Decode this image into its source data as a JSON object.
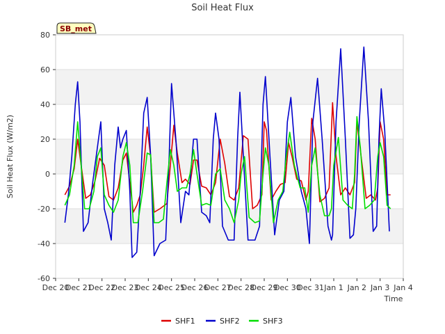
{
  "chart_data": {
    "type": "line",
    "title": "Soil Heat Flux",
    "xlabel": "Time",
    "ylabel": "Soil Heat Flux (W/m2)",
    "ylim": [
      -60,
      80
    ],
    "xlim": [
      0,
      15
    ],
    "yticks": [
      -60,
      -40,
      -20,
      0,
      20,
      40,
      60,
      80
    ],
    "ytick_labels": [
      "-60",
      "-40",
      "-20",
      "0",
      "20",
      "40",
      "60",
      "80"
    ],
    "xticks": [
      0,
      1,
      2,
      3,
      4,
      5,
      6,
      7,
      8,
      9,
      10,
      11,
      12,
      13,
      14,
      15
    ],
    "xtick_labels": [
      "Dec 20",
      "Dec 21",
      "Dec 22",
      "Dec 23",
      "Dec 24",
      "Dec 25",
      "Dec 26",
      "Dec 27",
      "Dec 28",
      "Dec 29",
      "Dec 30",
      "Dec 31",
      "Jan 1",
      "Jan 2",
      "Jan 3",
      "Jan 4"
    ],
    "station_label": "SB_met",
    "grid": true,
    "legend_position": "bottom-center",
    "x_unit": "days since Dec 20",
    "series": [
      {
        "name": "SHF1",
        "color": "#dd0000",
        "x": [
          0.4,
          0.6,
          0.8,
          0.95,
          1.1,
          1.3,
          1.5,
          1.7,
          1.9,
          2.1,
          2.3,
          2.5,
          2.7,
          2.9,
          3.05,
          3.2,
          3.35,
          3.5,
          3.65,
          3.8,
          3.95,
          4.1,
          4.25,
          4.5,
          4.8,
          4.95,
          5.1,
          5.25,
          5.45,
          5.6,
          5.8,
          5.95,
          6.1,
          6.3,
          6.5,
          6.7,
          6.9,
          7.1,
          7.3,
          7.5,
          7.7,
          7.9,
          8.1,
          8.3,
          8.5,
          8.7,
          8.9,
          9.0,
          9.1,
          9.3,
          9.5,
          9.7,
          9.9,
          10.05,
          10.2,
          10.4,
          10.6,
          10.8,
          10.9,
          11.05,
          11.2,
          11.4,
          11.6,
          11.8,
          11.95,
          12.1,
          12.3,
          12.5,
          12.7,
          12.9,
          13.0,
          13.2,
          13.4,
          13.6,
          13.8,
          13.9,
          14.0,
          14.15,
          14.3,
          14.45
        ],
        "values": [
          -12,
          -7,
          3,
          20,
          5,
          -14,
          -12,
          -4,
          9,
          5,
          -13,
          -15,
          -8,
          8,
          12,
          -5,
          -22,
          -18,
          -12,
          5,
          27,
          10,
          -22,
          -20,
          -17,
          5,
          28,
          12,
          -5,
          -3,
          -6,
          8,
          8,
          -7,
          -8,
          -12,
          -5,
          20,
          6,
          -13,
          -15,
          -8,
          22,
          20,
          -20,
          -18,
          -12,
          30,
          25,
          -15,
          -10,
          -6,
          -5,
          18,
          10,
          -3,
          -4,
          -15,
          -10,
          32,
          20,
          -16,
          -14,
          -8,
          41,
          10,
          -12,
          -8,
          -12,
          -5,
          30,
          8,
          -14,
          -12,
          -15,
          -8,
          30,
          20,
          -12,
          -12
        ]
      },
      {
        "name": "SHF2",
        "color": "#0000cc",
        "x": [
          0.4,
          0.55,
          0.7,
          0.85,
          0.95,
          1.05,
          1.2,
          1.4,
          1.6,
          1.8,
          1.95,
          2.1,
          2.25,
          2.4,
          2.55,
          2.7,
          2.8,
          2.9,
          3.05,
          3.2,
          3.3,
          3.5,
          3.65,
          3.8,
          3.95,
          4.1,
          4.25,
          4.5,
          4.75,
          4.9,
          5.0,
          5.2,
          5.4,
          5.6,
          5.75,
          5.95,
          6.1,
          6.3,
          6.5,
          6.65,
          6.8,
          6.9,
          7.05,
          7.2,
          7.45,
          7.7,
          7.85,
          7.95,
          8.1,
          8.3,
          8.6,
          8.8,
          8.95,
          9.05,
          9.25,
          9.45,
          9.65,
          9.85,
          10.0,
          10.15,
          10.35,
          10.6,
          10.8,
          10.95,
          11.1,
          11.3,
          11.5,
          11.75,
          11.9,
          11.95,
          12.1,
          12.3,
          12.5,
          12.7,
          12.85,
          12.95,
          13.1,
          13.3,
          13.5,
          13.7,
          13.85,
          13.95,
          14.05,
          14.2,
          14.4
        ],
        "values": [
          -28,
          -12,
          10,
          40,
          53,
          30,
          -33,
          -28,
          -5,
          15,
          30,
          -20,
          -28,
          -38,
          5,
          27,
          15,
          20,
          25,
          -10,
          -48,
          -45,
          -10,
          35,
          44,
          10,
          -47,
          -40,
          -38,
          10,
          52,
          18,
          -28,
          -10,
          -12,
          20,
          20,
          -22,
          -24,
          -28,
          20,
          35,
          20,
          -30,
          -38,
          -38,
          20,
          47,
          10,
          -38,
          -38,
          -30,
          40,
          56,
          10,
          -35,
          -15,
          -10,
          30,
          44,
          10,
          -10,
          -20,
          -40,
          30,
          55,
          20,
          -30,
          -38,
          -35,
          30,
          72,
          20,
          -37,
          -35,
          -20,
          30,
          73,
          30,
          -33,
          -30,
          20,
          49,
          25,
          -33
        ]
      },
      {
        "name": "SHF3",
        "color": "#00dd00",
        "x": [
          0.4,
          0.6,
          0.8,
          0.95,
          1.1,
          1.25,
          1.45,
          1.65,
          1.8,
          1.95,
          2.1,
          2.3,
          2.5,
          2.7,
          2.9,
          3.05,
          3.2,
          3.35,
          3.55,
          3.75,
          3.95,
          4.1,
          4.25,
          4.45,
          4.65,
          4.8,
          4.95,
          5.1,
          5.25,
          5.45,
          5.65,
          5.8,
          5.95,
          6.1,
          6.3,
          6.5,
          6.7,
          6.9,
          7.1,
          7.3,
          7.5,
          7.7,
          7.9,
          8.0,
          8.15,
          8.35,
          8.6,
          8.8,
          8.95,
          9.05,
          9.2,
          9.4,
          9.6,
          9.8,
          9.95,
          10.1,
          10.3,
          10.55,
          10.75,
          10.9,
          11.05,
          11.2,
          11.4,
          11.6,
          11.8,
          11.9,
          12.0,
          12.2,
          12.4,
          12.6,
          12.8,
          12.9,
          13.0,
          13.15,
          13.35,
          13.55,
          13.75,
          13.9,
          14.0,
          14.15,
          14.3,
          14.45
        ],
        "values": [
          -18,
          -12,
          5,
          30,
          5,
          -20,
          -20,
          -10,
          10,
          15,
          -12,
          -18,
          -22,
          -15,
          10,
          18,
          5,
          -28,
          -28,
          -10,
          12,
          11,
          -28,
          -28,
          -26,
          -5,
          14,
          5,
          -10,
          -8,
          -8,
          0,
          14,
          0,
          -18,
          -17,
          -18,
          0,
          3,
          -15,
          -20,
          -28,
          -15,
          0,
          10,
          -25,
          -28,
          -27,
          0,
          15,
          5,
          -28,
          -15,
          -10,
          10,
          24,
          5,
          -8,
          -8,
          -22,
          5,
          15,
          -12,
          -24,
          -24,
          -20,
          5,
          21,
          -15,
          -18,
          -20,
          0,
          33,
          15,
          -20,
          -18,
          -15,
          10,
          18,
          10,
          -18,
          -20
        ]
      }
    ]
  }
}
